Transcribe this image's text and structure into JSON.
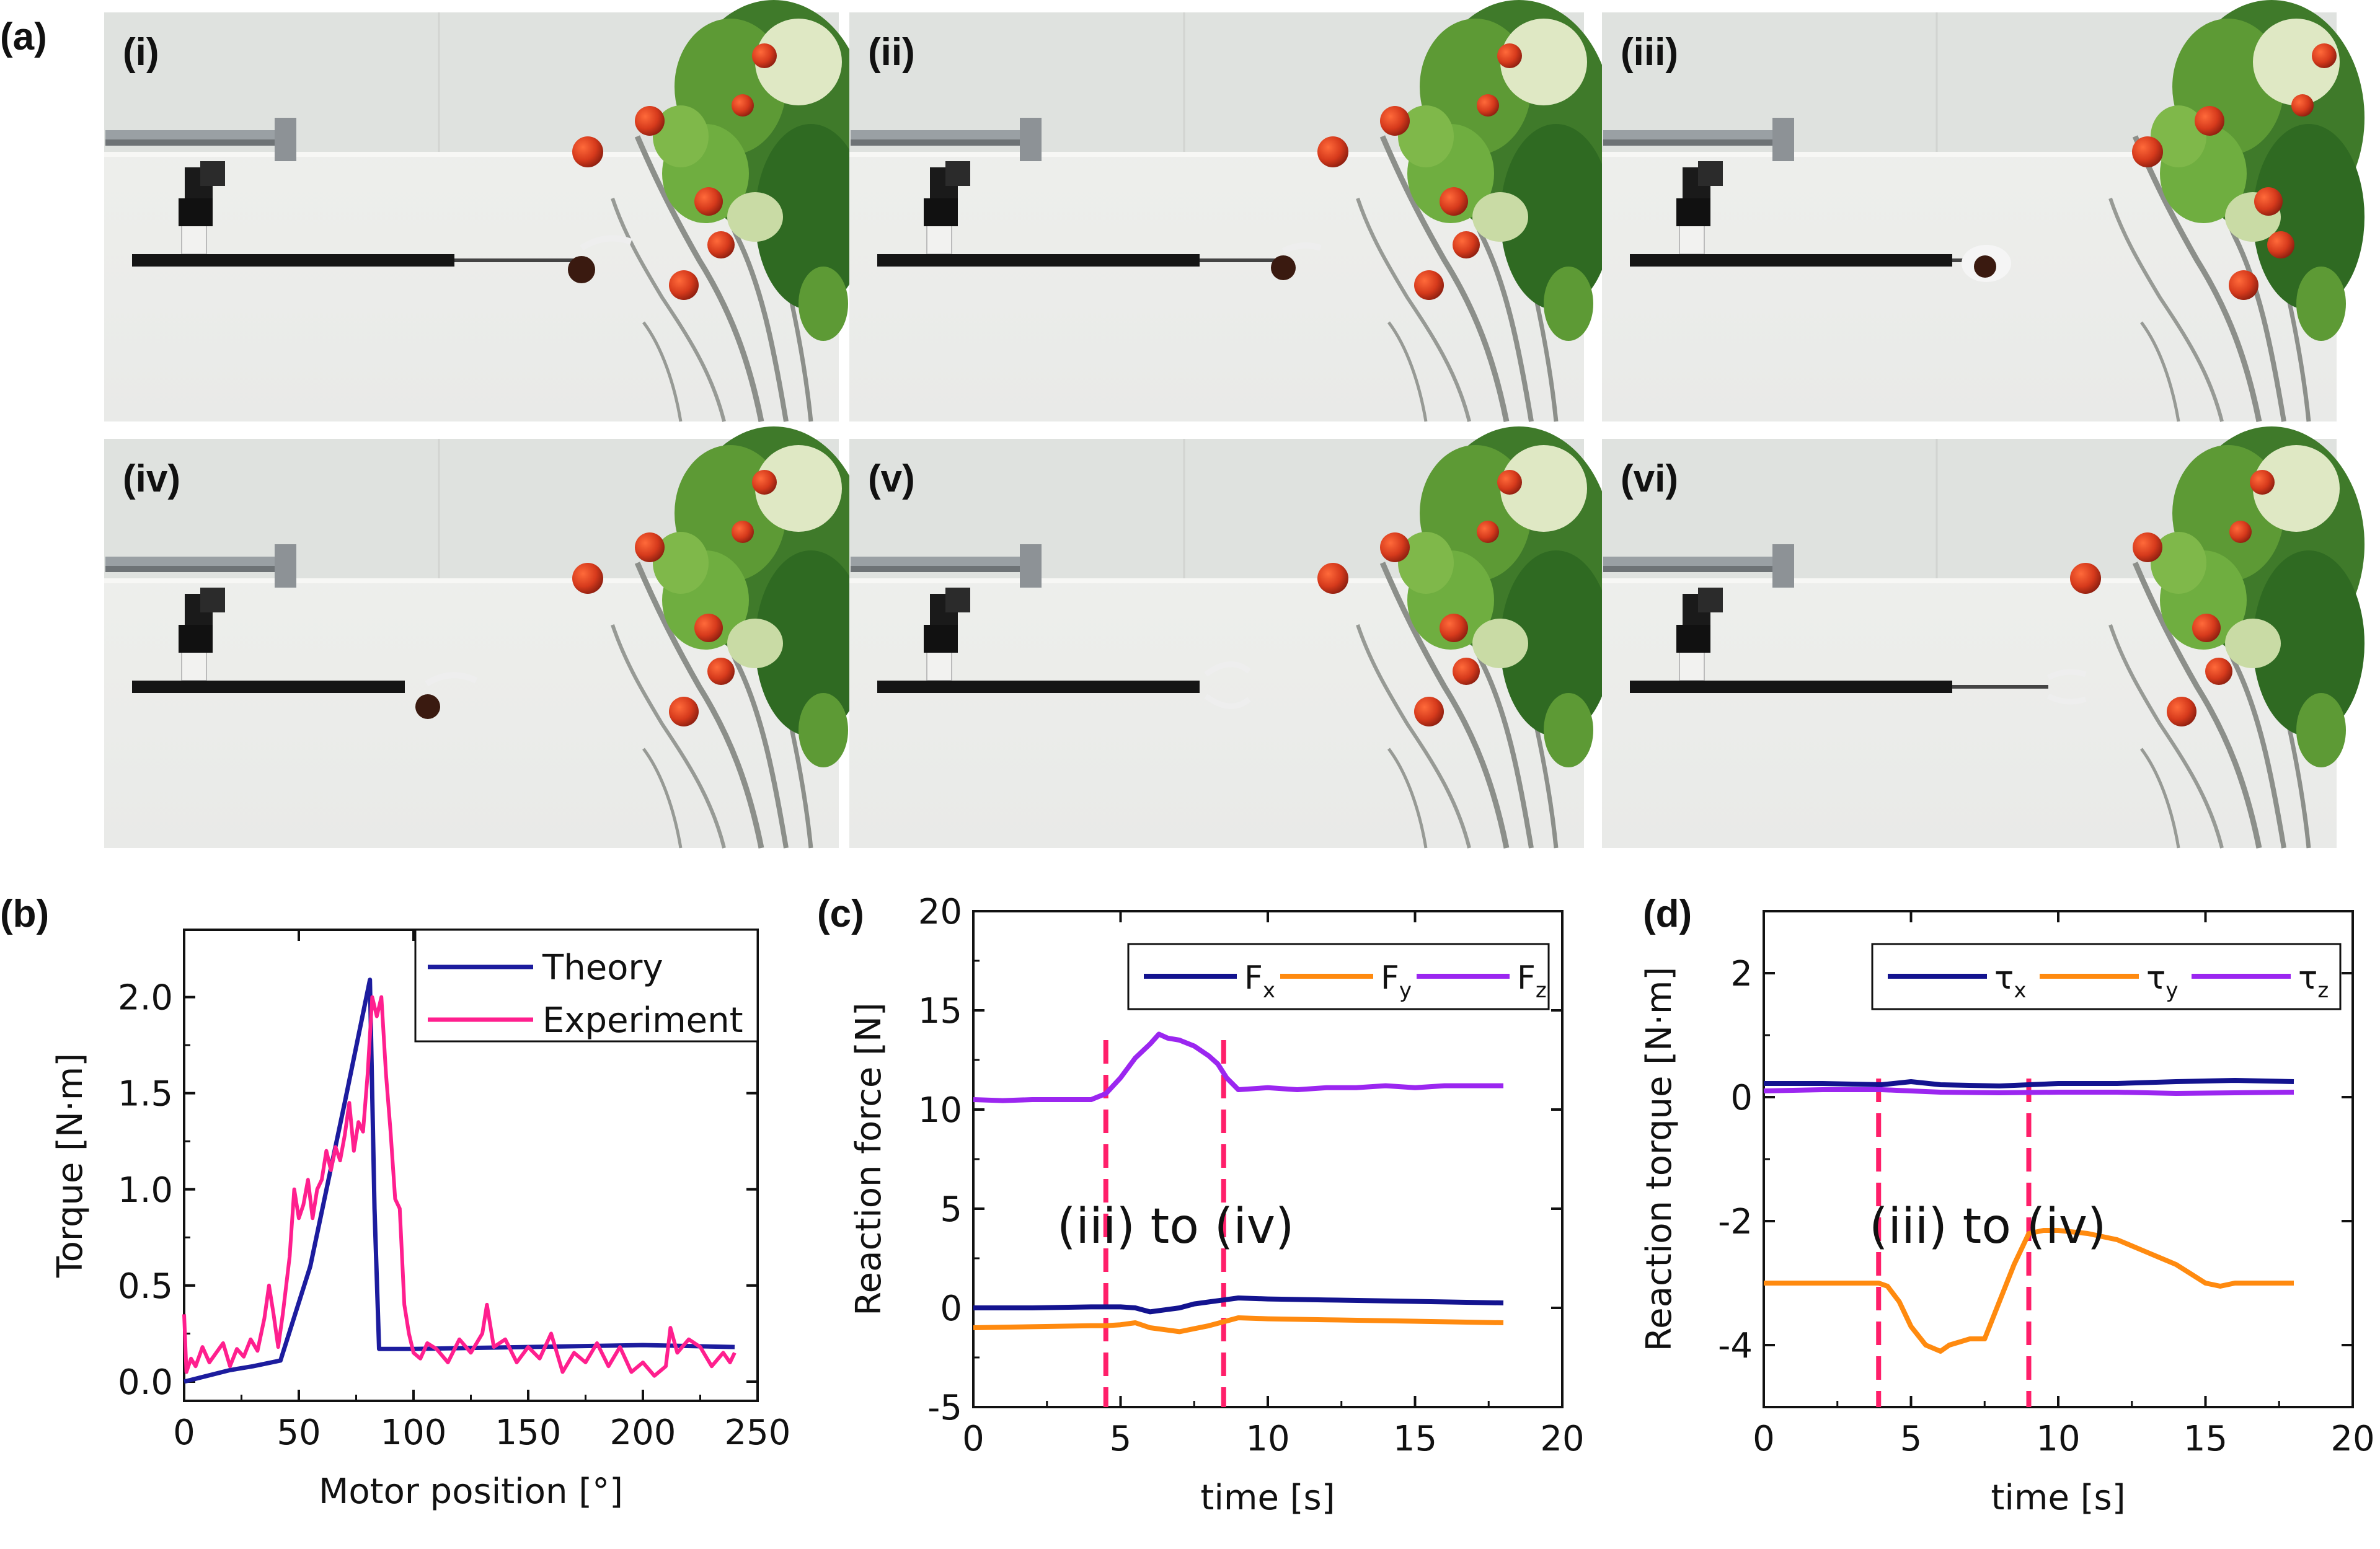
{
  "panel_labels": {
    "a": "(a)",
    "b": "(b)",
    "c": "(c)",
    "d": "(d)"
  },
  "photo_labels": [
    "(i)",
    "(ii)",
    "(iii)",
    "(iv)",
    "(v)",
    "(vi)"
  ],
  "colors": {
    "theory": "#1c1c9e",
    "experiment": "#ff1f8e",
    "fx": "#13138f",
    "fy": "#ff8a0f",
    "fz": "#9b26f0",
    "marker": "#ff1f6a"
  },
  "annotations": {
    "c": "(iii) to (iv)",
    "d": "(iii) to (iv)"
  },
  "chart_data": [
    {
      "type": "line",
      "panel": "(b)",
      "xlabel": "Motor position [°]",
      "ylabel": "Torque [N·m]",
      "xlim": [
        0,
        250
      ],
      "ylim": [
        -0.1,
        2.35
      ],
      "xticks": [
        "0",
        "50",
        "100",
        "150",
        "200",
        "250"
      ],
      "yticks": [
        "0.0",
        "0.5",
        "1.0",
        "1.5",
        "2.0"
      ],
      "legend_position": "top-right",
      "series": [
        {
          "name": "Theory",
          "x": [
            0,
            10,
            20,
            30,
            42,
            55,
            70,
            81,
            83,
            85,
            100,
            150,
            200,
            240
          ],
          "y": [
            0.0,
            0.03,
            0.06,
            0.08,
            0.11,
            0.6,
            1.45,
            2.09,
            0.9,
            0.17,
            0.17,
            0.18,
            0.19,
            0.18
          ]
        },
        {
          "name": "Experiment",
          "x": [
            0,
            1,
            3,
            5,
            8,
            11,
            14,
            17,
            20,
            23,
            26,
            29,
            32,
            35,
            37,
            39,
            41,
            43,
            46,
            48,
            50,
            52,
            54,
            56,
            58,
            60,
            62,
            64,
            66,
            68,
            70,
            72,
            74,
            76,
            78,
            80,
            82,
            84,
            86,
            88,
            90,
            92,
            94,
            96,
            98,
            100,
            103,
            106,
            110,
            115,
            120,
            125,
            130,
            132,
            135,
            140,
            145,
            150,
            155,
            160,
            165,
            170,
            175,
            180,
            185,
            190,
            195,
            200,
            205,
            210,
            212,
            215,
            220,
            225,
            230,
            235,
            238,
            240
          ],
          "y": [
            0.35,
            0.05,
            0.12,
            0.08,
            0.18,
            0.1,
            0.15,
            0.2,
            0.08,
            0.17,
            0.13,
            0.22,
            0.16,
            0.33,
            0.5,
            0.35,
            0.18,
            0.35,
            0.65,
            1.0,
            0.85,
            0.92,
            1.05,
            0.85,
            1.0,
            1.05,
            1.2,
            1.1,
            1.22,
            1.15,
            1.28,
            1.45,
            1.2,
            1.35,
            1.3,
            1.6,
            2.0,
            1.9,
            2.0,
            1.6,
            1.3,
            0.95,
            0.9,
            0.4,
            0.25,
            0.15,
            0.12,
            0.2,
            0.17,
            0.1,
            0.22,
            0.15,
            0.25,
            0.4,
            0.18,
            0.22,
            0.1,
            0.18,
            0.12,
            0.25,
            0.05,
            0.15,
            0.1,
            0.2,
            0.08,
            0.18,
            0.05,
            0.1,
            0.03,
            0.08,
            0.28,
            0.15,
            0.22,
            0.18,
            0.08,
            0.15,
            0.1,
            0.15
          ]
        }
      ]
    },
    {
      "type": "line",
      "panel": "(c)",
      "xlabel": "time [s]",
      "ylabel": "Reaction force [N]",
      "xlim": [
        0,
        20
      ],
      "ylim": [
        -5,
        20
      ],
      "xticks": [
        "0",
        "5",
        "10",
        "15",
        "20"
      ],
      "yticks": [
        "-5",
        "0",
        "5",
        "10",
        "15",
        "20"
      ],
      "legend_position": "top",
      "legend": {
        "fx": {
          "base": "F",
          "sub": "x"
        },
        "fy": {
          "base": "F",
          "sub": "y"
        },
        "fz": {
          "base": "F",
          "sub": "z"
        }
      },
      "markers_x": [
        4.5,
        8.5
      ],
      "series": [
        {
          "name": "Fx",
          "x": [
            0,
            2,
            4,
            4.5,
            5,
            5.5,
            6,
            6.5,
            7,
            7.5,
            8,
            8.5,
            9,
            10,
            12,
            14,
            16,
            18
          ],
          "y": [
            0.0,
            0.0,
            0.05,
            0.05,
            0.05,
            0.0,
            -0.2,
            -0.1,
            0.0,
            0.2,
            0.3,
            0.4,
            0.5,
            0.45,
            0.4,
            0.35,
            0.3,
            0.25
          ]
        },
        {
          "name": "Fy",
          "x": [
            0,
            2,
            4,
            4.5,
            5,
            5.5,
            6,
            6.5,
            7,
            7.5,
            8,
            8.5,
            9,
            10,
            12,
            14,
            16,
            18
          ],
          "y": [
            -1.0,
            -0.95,
            -0.9,
            -0.9,
            -0.85,
            -0.75,
            -1.0,
            -1.1,
            -1.2,
            -1.05,
            -0.9,
            -0.7,
            -0.5,
            -0.55,
            -0.6,
            -0.65,
            -0.7,
            -0.75
          ]
        },
        {
          "name": "Fz",
          "x": [
            0,
            1,
            2,
            3,
            4,
            4.5,
            5,
            5.5,
            6,
            6.3,
            6.6,
            7,
            7.5,
            8,
            8.3,
            8.6,
            9,
            10,
            11,
            12,
            13,
            14,
            15,
            16,
            17,
            18
          ],
          "y": [
            10.5,
            10.45,
            10.5,
            10.5,
            10.5,
            10.8,
            11.6,
            12.6,
            13.3,
            13.8,
            13.6,
            13.5,
            13.2,
            12.7,
            12.3,
            11.6,
            11.0,
            11.1,
            11.0,
            11.1,
            11.1,
            11.2,
            11.1,
            11.2,
            11.2,
            11.2
          ]
        }
      ]
    },
    {
      "type": "line",
      "panel": "(d)",
      "xlabel": "time [s]",
      "ylabel": "Reaction torque [N·m]",
      "xlim": [
        0,
        20
      ],
      "ylim": [
        -5,
        3
      ],
      "xticks": [
        "0",
        "5",
        "10",
        "15",
        "20"
      ],
      "yticks": [
        "-4",
        "-2",
        "0",
        "2"
      ],
      "legend_position": "top",
      "legend": {
        "tx": {
          "base": "τ",
          "sub": "x"
        },
        "ty": {
          "base": "τ",
          "sub": "y"
        },
        "tz": {
          "base": "τ",
          "sub": "z"
        }
      },
      "markers_x": [
        3.9,
        9.0
      ],
      "series": [
        {
          "name": "τx",
          "x": [
            0,
            2,
            4,
            5,
            6,
            8,
            10,
            12,
            14,
            16,
            18
          ],
          "y": [
            0.22,
            0.22,
            0.2,
            0.25,
            0.2,
            0.18,
            0.22,
            0.22,
            0.25,
            0.27,
            0.25
          ]
        },
        {
          "name": "τy",
          "x": [
            0,
            2,
            3.9,
            4.2,
            4.6,
            5,
            5.5,
            6,
            6.3,
            7,
            7.5,
            8,
            8.5,
            9,
            9.5,
            10,
            11,
            12,
            13,
            14,
            14.5,
            15,
            15.5,
            16,
            17,
            18
          ],
          "y": [
            -3.0,
            -3.0,
            -3.0,
            -3.05,
            -3.3,
            -3.7,
            -4.0,
            -4.1,
            -4.0,
            -3.9,
            -3.9,
            -3.3,
            -2.7,
            -2.2,
            -2.15,
            -2.15,
            -2.2,
            -2.3,
            -2.5,
            -2.7,
            -2.85,
            -3.0,
            -3.05,
            -3.0,
            -3.0,
            -3.0
          ]
        },
        {
          "name": "τz",
          "x": [
            0,
            2,
            4,
            5,
            6,
            8,
            10,
            12,
            14,
            16,
            18
          ],
          "y": [
            0.1,
            0.12,
            0.12,
            0.1,
            0.08,
            0.07,
            0.08,
            0.08,
            0.06,
            0.07,
            0.08
          ]
        }
      ]
    }
  ]
}
